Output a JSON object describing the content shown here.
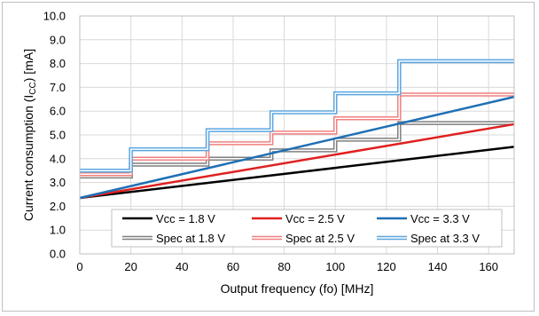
{
  "chart_data": {
    "type": "line",
    "title": "",
    "xlabel": "Output frequency (fo) [MHz]",
    "ylabel_parts": [
      "Current consumption (I",
      "CC",
      ") [mA]"
    ],
    "xlim": [
      0,
      170
    ],
    "ylim": [
      0,
      10
    ],
    "x_ticks": [
      "0",
      "20",
      "40",
      "60",
      "80",
      "100",
      "120",
      "140",
      "160"
    ],
    "y_ticks": [
      "0.0",
      "1.0",
      "2.0",
      "3.0",
      "4.0",
      "5.0",
      "6.0",
      "7.0",
      "8.0",
      "9.0",
      "10.0"
    ],
    "grid": true,
    "legend_position": "bottom-inside",
    "colors": {
      "vcc18": "#000000",
      "vcc25": "#e02020",
      "vcc33": "#1f6fb5",
      "spec18": "#7f7f7f",
      "spec25": "#f08080",
      "spec33": "#5aa6e0"
    },
    "series": [
      {
        "name": "Vcc = 1.8 V",
        "style": "line",
        "color_key": "vcc18",
        "points": [
          [
            0,
            2.35
          ],
          [
            170,
            4.5
          ]
        ]
      },
      {
        "name": "Vcc = 2.5 V",
        "style": "line",
        "color_key": "vcc25",
        "points": [
          [
            0,
            2.35
          ],
          [
            170,
            5.45
          ]
        ]
      },
      {
        "name": "Vcc = 3.3 V",
        "style": "line",
        "color_key": "vcc33",
        "points": [
          [
            0,
            2.35
          ],
          [
            170,
            6.6
          ]
        ]
      },
      {
        "name": "Spec at 1.8 V",
        "style": "spec",
        "color_key": "spec18",
        "steps": [
          [
            0,
            20,
            3.25
          ],
          [
            20,
            50,
            3.75
          ],
          [
            50,
            75,
            4.0
          ],
          [
            75,
            100,
            4.35
          ],
          [
            100,
            125,
            4.8
          ],
          [
            125,
            170,
            5.5
          ]
        ]
      },
      {
        "name": "Spec at 2.5 V",
        "style": "spec",
        "color_key": "spec25",
        "steps": [
          [
            0,
            20,
            3.35
          ],
          [
            20,
            50,
            4.0
          ],
          [
            50,
            75,
            4.65
          ],
          [
            75,
            100,
            5.1
          ],
          [
            100,
            125,
            5.7
          ],
          [
            125,
            170,
            6.7
          ]
        ]
      },
      {
        "name": "Spec at 3.3 V",
        "style": "spec",
        "color_key": "spec33",
        "steps": [
          [
            0,
            20,
            3.5
          ],
          [
            20,
            50,
            4.4
          ],
          [
            50,
            75,
            5.2
          ],
          [
            75,
            100,
            5.95
          ],
          [
            100,
            125,
            6.75
          ],
          [
            125,
            170,
            8.1
          ]
        ]
      }
    ]
  }
}
